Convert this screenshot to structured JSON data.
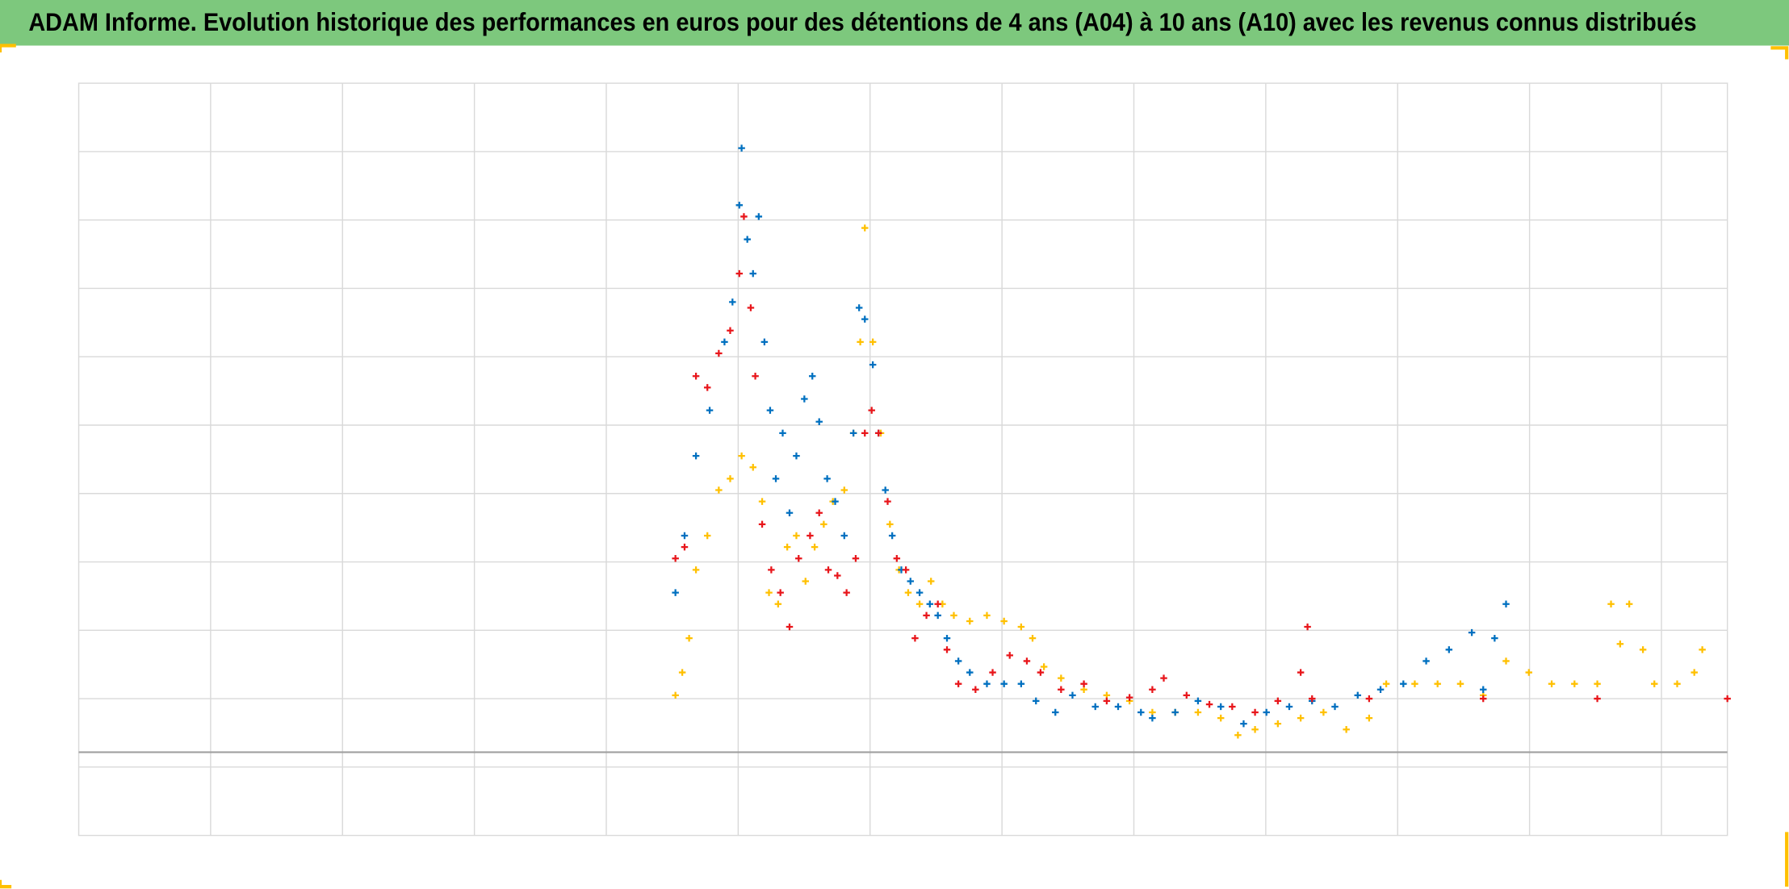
{
  "chart_data": {
    "type": "scatter",
    "title": "ADAM Informe. Evolution historique des performances en euros pour des détentions de 4 ans (A04) à 10 ans (A10) avec les revenus connus distribués",
    "xlim": [
      0,
      1445
    ],
    "ylim": [
      0,
      660
    ],
    "grid": true,
    "marker": "+",
    "series": [
      {
        "color": "#ffc000",
        "x": [
          523,
          529,
          535,
          541,
          551,
          561,
          571,
          581,
          591,
          599,
          605,
          613,
          621,
          629,
          637,
          645,
          653,
          661,
          671,
          679,
          685,
          689,
          696,
          703,
          711,
          719,
          727,
          737,
          747,
          757,
          767,
          781,
          796,
          811,
          826,
          836,
          846,
          861,
          881,
          901,
          921,
          941,
          961,
          981,
          1001,
          1016,
          1031,
          1051,
          1071,
          1091,
          1111,
          1131,
          1146,
          1171,
          1191,
          1211,
          1231,
          1251,
          1271,
          1291,
          1311,
          1331,
          1343,
          1351,
          1359,
          1371,
          1381,
          1401,
          1416,
          1423
        ],
        "values": [
          123,
          143,
          173,
          233,
          263,
          303,
          313,
          333,
          323,
          293,
          213,
          203,
          253,
          263,
          223,
          253,
          273,
          293,
          303,
          353,
          433,
          533,
          433,
          353,
          273,
          233,
          213,
          203,
          223,
          203,
          193,
          188,
          193,
          188,
          183,
          173,
          148,
          138,
          128,
          123,
          118,
          108,
          108,
          108,
          103,
          88,
          93,
          98,
          103,
          108,
          93,
          103,
          133,
          133,
          133,
          133,
          123,
          153,
          143,
          133,
          133,
          133,
          203,
          168,
          203,
          163,
          133,
          133,
          143,
          163
        ]
      },
      {
        "color": "#0070c0",
        "x": [
          523,
          531,
          541,
          553,
          566,
          573,
          579,
          581,
          586,
          591,
          596,
          601,
          606,
          611,
          617,
          623,
          629,
          636,
          643,
          649,
          656,
          663,
          671,
          679,
          684,
          689,
          696,
          701,
          707,
          713,
          721,
          729,
          737,
          746,
          753,
          761,
          771,
          781,
          796,
          811,
          826,
          839,
          856,
          871,
          891,
          911,
          931,
          941,
          961,
          981,
          1001,
          1021,
          1041,
          1061,
          1081,
          1101,
          1121,
          1141,
          1161,
          1181,
          1201,
          1221,
          1231,
          1241,
          1251
        ],
        "values": [
          213,
          263,
          333,
          373,
          433,
          468,
          553,
          603,
          523,
          493,
          543,
          433,
          373,
          313,
          353,
          283,
          333,
          383,
          403,
          363,
          313,
          293,
          263,
          353,
          463,
          453,
          413,
          353,
          303,
          263,
          233,
          223,
          213,
          203,
          193,
          173,
          153,
          143,
          133,
          133,
          133,
          118,
          108,
          123,
          113,
          113,
          108,
          103,
          108,
          118,
          113,
          98,
          108,
          113,
          118,
          113,
          123,
          128,
          133,
          153,
          163,
          178,
          128,
          173,
          203
        ]
      },
      {
        "color": "#e8161b",
        "x": [
          523,
          531,
          541,
          551,
          561,
          571,
          579,
          583,
          589,
          593,
          599,
          607,
          615,
          623,
          631,
          641,
          649,
          657,
          665,
          673,
          681,
          689,
          695,
          701,
          709,
          717,
          725,
          733,
          743,
          753,
          761,
          771,
          786,
          801,
          816,
          831,
          843,
          861,
          881,
          901,
          921,
          941,
          951,
          971,
          991,
          1011,
          1031,
          1051,
          1071,
          1077,
          1081,
          1131,
          1231,
          1331,
          1445
        ],
        "values": [
          243,
          253,
          403,
          393,
          423,
          443,
          493,
          543,
          463,
          403,
          273,
          233,
          213,
          183,
          243,
          263,
          283,
          233,
          228,
          213,
          243,
          353,
          373,
          353,
          293,
          243,
          233,
          173,
          193,
          203,
          163,
          133,
          128,
          143,
          158,
          153,
          143,
          128,
          133,
          118,
          121,
          128,
          138,
          123,
          115,
          113,
          108,
          118,
          143,
          183,
          120,
          120,
          120,
          120,
          120
        ]
      }
    ]
  }
}
